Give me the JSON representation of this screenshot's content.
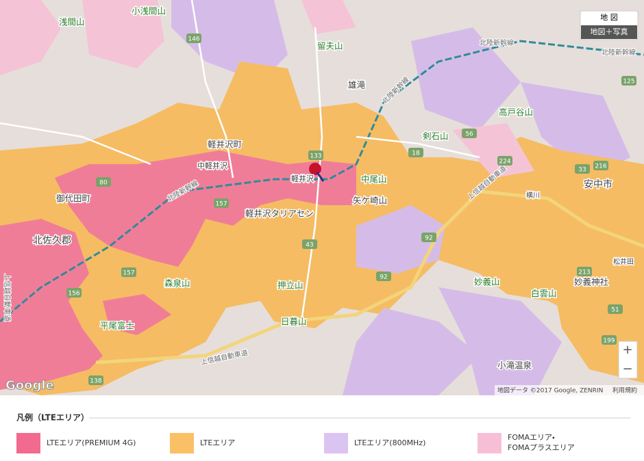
{
  "map_controls": {
    "map": "地 図",
    "satellite": "地図＋写真",
    "zoom_in": "+",
    "zoom_out": "−"
  },
  "places": [
    "浅間山",
    "小浅間山",
    "留夫山",
    "雄滝",
    "高戸谷山",
    "剣石山",
    "軽井沢町",
    "中軽井沢",
    "軽井沢",
    "中尾山",
    "安中市",
    "御代田町",
    "矢ケ崎山",
    "軽井沢タリアセン",
    "北佐久郡",
    "森泉山",
    "押立山",
    "妙義山",
    "妙義神社",
    "白雲山",
    "平尾富士",
    "日暮山",
    "小滝温泉",
    "横川",
    "松井田"
  ],
  "roads": [
    "北陸新幹線",
    "北陸新幹線",
    "北陸新幹線",
    "北陸新幹線",
    "上信越自動車道",
    "上信越自動車道",
    "上信越自動車道"
  ],
  "route_numbers": [
    146,
    133,
    18,
    56,
    125,
    224,
    216,
    33,
    157,
    43,
    92,
    92,
    156,
    157,
    213,
    51,
    199,
    138,
    80
  ],
  "attribution": {
    "logo": "Google",
    "data": "地図データ ©2017 Google, ZENRIN",
    "terms": "利用規約"
  },
  "legend": {
    "title": "凡例（LTEエリア）",
    "items": [
      {
        "lines": [
          "LTEエリア(PREMIUM 4G)"
        ]
      },
      {
        "lines": [
          "LTEエリア"
        ]
      },
      {
        "lines": [
          "LTEエリア(800MHz)"
        ]
      },
      {
        "lines": [
          "FOMAエリア・",
          "FOMAプラスエリア"
        ]
      }
    ]
  }
}
